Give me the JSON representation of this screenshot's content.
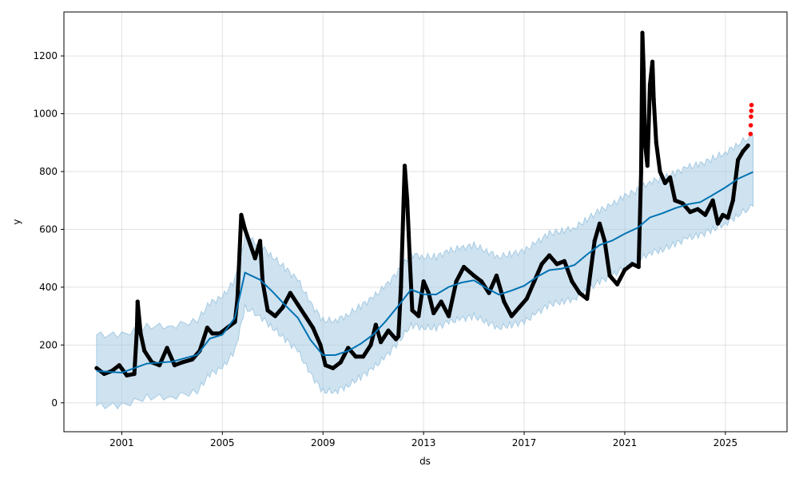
{
  "chart_data": {
    "type": "line",
    "title": "",
    "xlabel": "ds",
    "ylabel": "y",
    "xlim": [
      1998.7,
      2027.45
    ],
    "ylim": [
      -100,
      1352
    ],
    "xticks": [
      2001,
      2005,
      2009,
      2013,
      2017,
      2021,
      2025
    ],
    "xtick_labels": [
      "2001",
      "2005",
      "2009",
      "2013",
      "2017",
      "2021",
      "2025"
    ],
    "yticks": [
      0,
      200,
      400,
      600,
      800,
      1000,
      1200
    ],
    "ytick_labels": [
      "0",
      "200",
      "400",
      "600",
      "800",
      "1000",
      "1200"
    ],
    "grid": true,
    "colors": {
      "forecast": "#0072b2",
      "band": "#a6cbe3",
      "observed": "#000000",
      "recent": "#ff0000"
    },
    "forecast": {
      "name": "yhat",
      "x": [
        2000.0,
        2001.0,
        2002.0,
        2003.0,
        2004.0,
        2004.5,
        2005.0,
        2005.5,
        2005.9,
        2006.5,
        2007.0,
        2007.5,
        2008.0,
        2008.5,
        2009.0,
        2009.5,
        2010.0,
        2010.5,
        2011.0,
        2011.5,
        2012.0,
        2012.5,
        2013.0,
        2013.5,
        2014.0,
        2014.5,
        2015.0,
        2015.5,
        2016.0,
        2016.5,
        2017.0,
        2017.5,
        2018.0,
        2018.5,
        2019.0,
        2019.5,
        2020.0,
        2020.5,
        2021.0,
        2021.5,
        2022.0,
        2022.5,
        2023.0,
        2023.5,
        2024.0,
        2024.5,
        2025.0,
        2025.5,
        2026.1
      ],
      "yhat": [
        110,
        110,
        140,
        140,
        160,
        220,
        240,
        300,
        450,
        420,
        380,
        340,
        300,
        220,
        160,
        160,
        180,
        210,
        240,
        280,
        330,
        390,
        380,
        380,
        400,
        410,
        420,
        400,
        380,
        390,
        400,
        430,
        460,
        470,
        480,
        510,
        540,
        560,
        590,
        610,
        640,
        650,
        670,
        690,
        700,
        720,
        740,
        770,
        800
      ],
      "lower_offset": -120,
      "upper_offset": 125
    },
    "observed": [
      [
        2000.0,
        120
      ],
      [
        2000.3,
        100
      ],
      [
        2000.6,
        110
      ],
      [
        2000.9,
        130
      ],
      [
        2001.2,
        95
      ],
      [
        2001.5,
        100
      ],
      [
        2001.6,
        250
      ],
      [
        2001.63,
        350
      ],
      [
        2001.75,
        240
      ],
      [
        2001.9,
        180
      ],
      [
        2002.2,
        140
      ],
      [
        2002.5,
        130
      ],
      [
        2002.8,
        190
      ],
      [
        2003.1,
        130
      ],
      [
        2003.4,
        140
      ],
      [
        2003.8,
        150
      ],
      [
        2004.1,
        180
      ],
      [
        2004.4,
        260
      ],
      [
        2004.6,
        240
      ],
      [
        2004.9,
        240
      ],
      [
        2005.2,
        260
      ],
      [
        2005.5,
        280
      ],
      [
        2005.6,
        360
      ],
      [
        2005.75,
        650
      ],
      [
        2005.9,
        600
      ],
      [
        2006.1,
        550
      ],
      [
        2006.3,
        500
      ],
      [
        2006.5,
        560
      ],
      [
        2006.6,
        420
      ],
      [
        2006.8,
        320
      ],
      [
        2007.1,
        300
      ],
      [
        2007.4,
        330
      ],
      [
        2007.7,
        380
      ],
      [
        2008.0,
        340
      ],
      [
        2008.3,
        300
      ],
      [
        2008.6,
        260
      ],
      [
        2008.9,
        200
      ],
      [
        2009.1,
        130
      ],
      [
        2009.4,
        120
      ],
      [
        2009.7,
        140
      ],
      [
        2010.0,
        190
      ],
      [
        2010.3,
        160
      ],
      [
        2010.6,
        160
      ],
      [
        2010.9,
        200
      ],
      [
        2011.1,
        270
      ],
      [
        2011.3,
        210
      ],
      [
        2011.6,
        250
      ],
      [
        2011.9,
        220
      ],
      [
        2012.0,
        230
      ],
      [
        2012.1,
        400
      ],
      [
        2012.25,
        820
      ],
      [
        2012.35,
        700
      ],
      [
        2012.45,
        500
      ],
      [
        2012.55,
        320
      ],
      [
        2012.8,
        300
      ],
      [
        2013.0,
        420
      ],
      [
        2013.2,
        380
      ],
      [
        2013.4,
        310
      ],
      [
        2013.7,
        350
      ],
      [
        2014.0,
        300
      ],
      [
        2014.3,
        420
      ],
      [
        2014.6,
        470
      ],
      [
        2015.0,
        440
      ],
      [
        2015.3,
        420
      ],
      [
        2015.6,
        380
      ],
      [
        2015.9,
        440
      ],
      [
        2016.2,
        350
      ],
      [
        2016.5,
        300
      ],
      [
        2016.8,
        330
      ],
      [
        2017.1,
        360
      ],
      [
        2017.4,
        420
      ],
      [
        2017.7,
        480
      ],
      [
        2018.0,
        510
      ],
      [
        2018.3,
        480
      ],
      [
        2018.6,
        490
      ],
      [
        2018.9,
        420
      ],
      [
        2019.2,
        380
      ],
      [
        2019.5,
        360
      ],
      [
        2019.8,
        560
      ],
      [
        2020.0,
        620
      ],
      [
        2020.2,
        560
      ],
      [
        2020.4,
        440
      ],
      [
        2020.7,
        410
      ],
      [
        2021.0,
        460
      ],
      [
        2021.3,
        480
      ],
      [
        2021.55,
        470
      ],
      [
        2021.65,
        800
      ],
      [
        2021.7,
        1280
      ],
      [
        2021.75,
        1150
      ],
      [
        2021.8,
        900
      ],
      [
        2021.9,
        820
      ],
      [
        2022.0,
        1100
      ],
      [
        2022.1,
        1180
      ],
      [
        2022.15,
        1050
      ],
      [
        2022.25,
        900
      ],
      [
        2022.4,
        800
      ],
      [
        2022.6,
        760
      ],
      [
        2022.8,
        780
      ],
      [
        2023.0,
        700
      ],
      [
        2023.3,
        690
      ],
      [
        2023.6,
        660
      ],
      [
        2023.9,
        670
      ],
      [
        2024.2,
        650
      ],
      [
        2024.5,
        700
      ],
      [
        2024.7,
        620
      ],
      [
        2024.9,
        650
      ],
      [
        2025.1,
        640
      ],
      [
        2025.3,
        700
      ],
      [
        2025.5,
        840
      ],
      [
        2025.7,
        870
      ],
      [
        2025.9,
        890
      ]
    ],
    "recent": [
      [
        2026.0,
        930
      ],
      [
        2026.01,
        960
      ],
      [
        2026.02,
        990
      ],
      [
        2026.03,
        1010
      ],
      [
        2026.04,
        1030
      ]
    ]
  }
}
